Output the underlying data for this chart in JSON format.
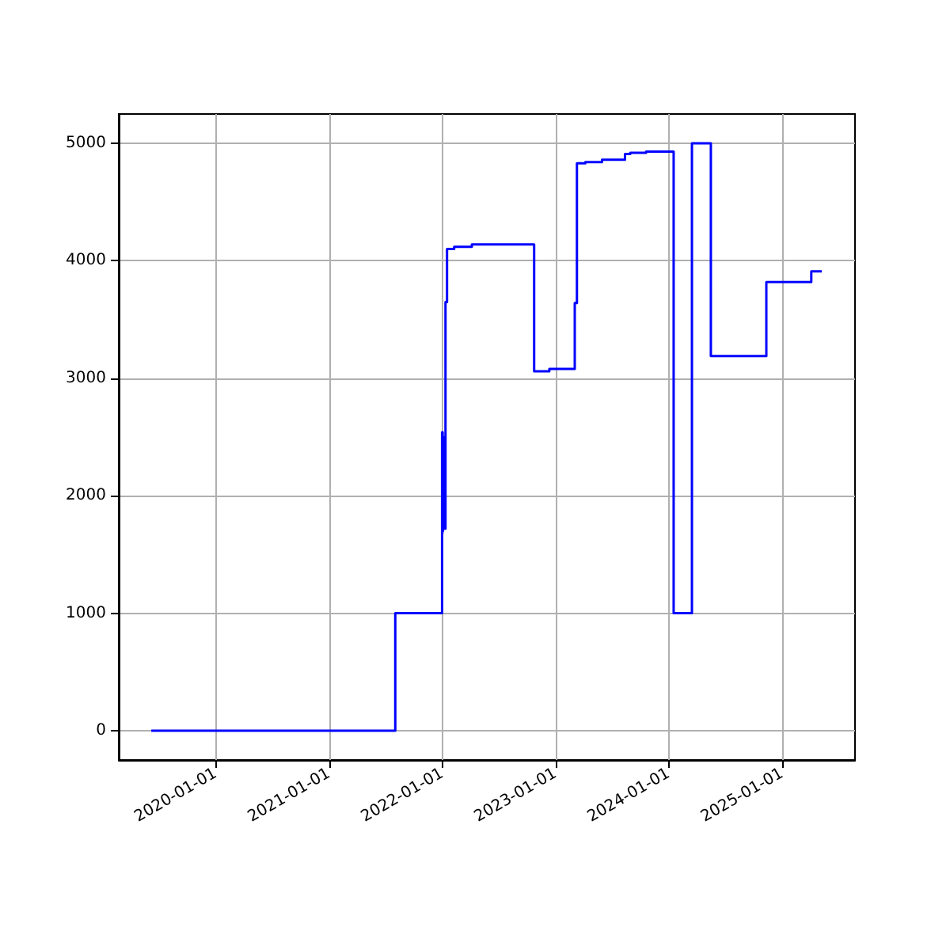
{
  "chart_data": {
    "type": "step",
    "x": [
      "2019-06-07",
      "2021-08-02",
      "2021-12-31",
      "2022-01-01",
      "2022-01-02",
      "2022-01-03",
      "2022-01-04",
      "2022-01-05",
      "2022-01-11",
      "2022-01-16",
      "2022-02-08",
      "2022-04-06",
      "2022-10-24",
      "2022-12-12",
      "2023-03-04",
      "2023-03-11",
      "2023-04-07",
      "2023-05-31",
      "2023-08-13",
      "2023-08-30",
      "2023-10-20",
      "2024-01-17",
      "2024-03-16",
      "2024-05-16",
      "2024-11-11",
      "2025-04-05",
      "2025-05-09"
    ],
    "series": [
      {
        "color": "#0000ff",
        "values": [
          0,
          1000,
          2540,
          1680,
          2540,
          1700,
          2500,
          1720,
          3650,
          4100,
          4120,
          4140,
          3060,
          3080,
          3640,
          4830,
          4840,
          4860,
          4910,
          4920,
          4930,
          1000,
          5000,
          3190,
          3820,
          3910,
          3910
        ]
      }
    ],
    "xlim": [
      "2019-02-22",
      "2025-08-24"
    ],
    "xticks": [
      "2020-01-01",
      "2021-01-01",
      "2022-01-01",
      "2023-01-01",
      "2024-01-01",
      "2025-01-01"
    ],
    "ylim": [
      -250,
      5250
    ],
    "yticks": [
      0,
      1000,
      2000,
      3000,
      4000,
      5000
    ],
    "grid": true
  }
}
